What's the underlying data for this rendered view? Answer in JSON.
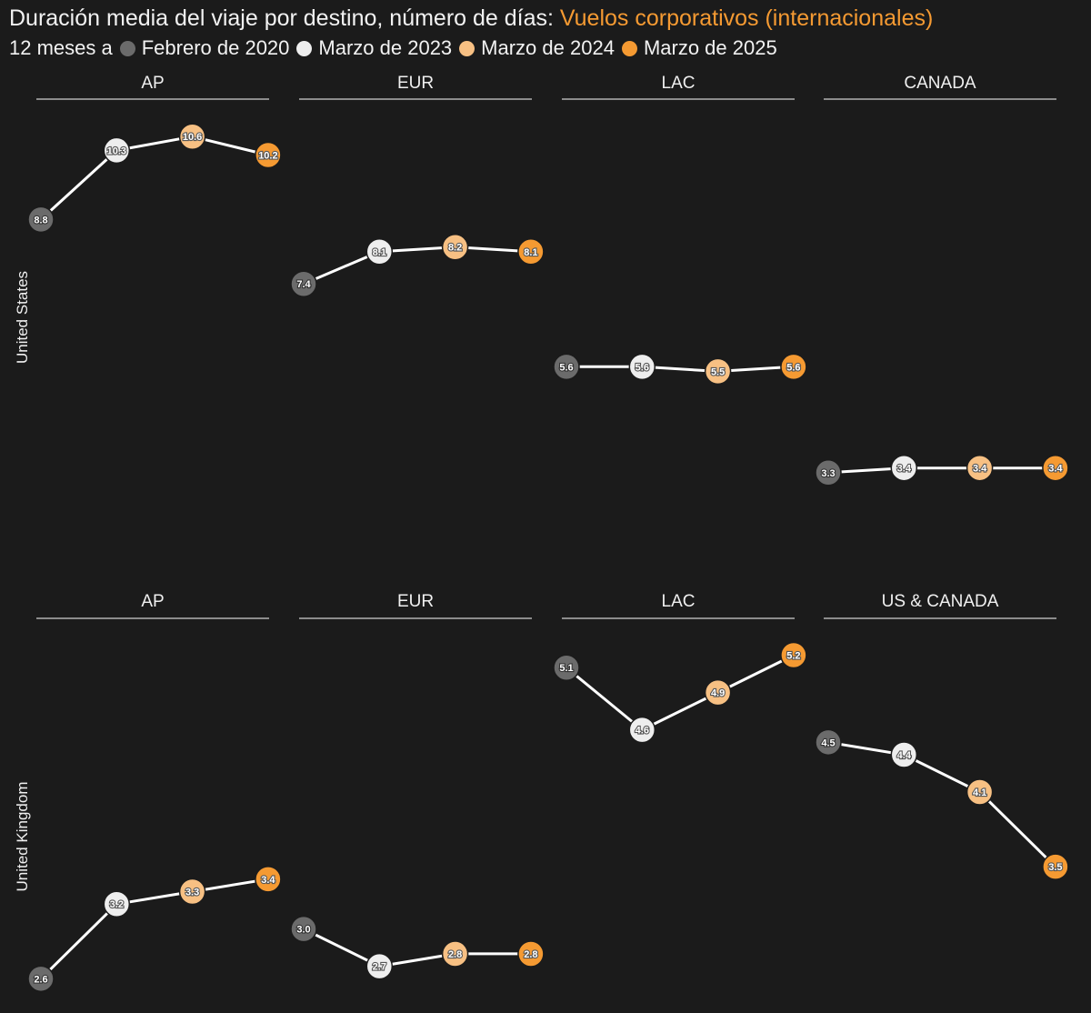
{
  "title": {
    "main": "Duración media del viaje por destino, número de días:",
    "highlight": "Vuelos corporativos (internacionales)"
  },
  "legend": {
    "prefix": "12 meses a",
    "items": [
      {
        "label": "Febrero de 2020",
        "color": "#6b6b6b"
      },
      {
        "label": "Marzo de 2023",
        "color": "#eeeeee"
      },
      {
        "label": "Marzo de 2024",
        "color": "#f7c083"
      },
      {
        "label": "Marzo de 2025",
        "color": "#f59a32"
      }
    ]
  },
  "colors": {
    "background": "#1b1b1b",
    "line": "#ffffff",
    "header_rule": "#cfcfcf",
    "point_outline": "#1b1b1b"
  },
  "chart_data": {
    "type": "line",
    "title": "Duración media del viaje por destino, número de días: Vuelos corporativos (internacionales)",
    "series_names": [
      "Febrero de 2020",
      "Marzo de 2023",
      "Marzo de 2024",
      "Marzo de 2025"
    ],
    "rows": [
      {
        "label": "United States",
        "ylim": [
          2.9,
          11.0
        ],
        "panels": [
          {
            "header": "AP",
            "values": [
              8.8,
              10.3,
              10.6,
              10.2
            ],
            "labels": [
              "8.8",
              "10.3",
              "10.6",
              "10.2"
            ]
          },
          {
            "header": "EUR",
            "values": [
              7.4,
              8.1,
              8.2,
              8.1
            ],
            "labels": [
              "7.4",
              "8.1",
              "8.2",
              "8.1"
            ]
          },
          {
            "header": "LAC",
            "values": [
              5.6,
              5.6,
              5.5,
              5.6
            ],
            "labels": [
              "5.6",
              "5.6",
              "5.5",
              "5.6"
            ]
          },
          {
            "header": "CANADA",
            "values": [
              3.3,
              3.4,
              3.4,
              3.4
            ],
            "labels": [
              "3.3",
              "3.4",
              "3.4",
              "3.4"
            ]
          }
        ]
      },
      {
        "label": "United Kingdom",
        "ylim": [
          2.5,
          5.35
        ],
        "panels": [
          {
            "header": "AP",
            "values": [
              2.6,
              3.2,
              3.3,
              3.4
            ],
            "labels": [
              "2.6",
              "3.2",
              "3.3",
              "3.4"
            ]
          },
          {
            "header": "EUR",
            "values": [
              3.0,
              2.7,
              2.8,
              2.8
            ],
            "labels": [
              "3.0",
              "2.7",
              "2.8",
              "2.8"
            ]
          },
          {
            "header": "LAC",
            "values": [
              5.1,
              4.6,
              4.9,
              5.2
            ],
            "labels": [
              "5.1",
              "4.6",
              "4.9",
              "5.2"
            ]
          },
          {
            "header": "US & CANADA",
            "values": [
              4.5,
              4.4,
              4.1,
              3.5
            ],
            "labels": [
              "4.5",
              "4.4",
              "4.1",
              "3.5"
            ]
          }
        ]
      }
    ]
  }
}
